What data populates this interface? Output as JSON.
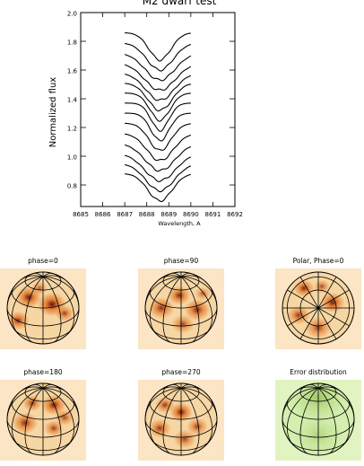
{
  "chart_data": [
    {
      "type": "line",
      "title": "M2 dwarf test",
      "xlabel": "Wavelength, A",
      "ylabel": "Normalized flux",
      "xlim": [
        8685,
        8692
      ],
      "ylim": [
        0.65,
        2.0
      ],
      "x_ticks": [
        "8685",
        "8686",
        "8687",
        "8688",
        "8689",
        "8690",
        "8691",
        "8692"
      ],
      "y_ticks": [
        "0.8",
        "1.0",
        "1.2",
        "1.4",
        "1.6",
        "1.8",
        "2.0"
      ],
      "line_profile": {
        "x_range": [
          8687.0,
          8690.0
        ],
        "center": 8688.6,
        "continuum_offsets": [
          0.88,
          0.95,
          1.02,
          1.09,
          1.16,
          1.23,
          1.3,
          1.37,
          1.44,
          1.51,
          1.58,
          1.65,
          1.72,
          1.79,
          1.86
        ],
        "depth": 0.19
      },
      "series_count": 15
    },
    {
      "type": "heatmap",
      "panels": [
        {
          "title": "phase=0",
          "spots": [
            [
              -40,
              30,
              16,
              0.95
            ],
            [
              25,
              10,
              18,
              1.0
            ],
            [
              -70,
              -35,
              14,
              0.85
            ],
            [
              60,
              -15,
              12,
              0.75
            ],
            [
              -10,
              55,
              10,
              0.6
            ]
          ],
          "palette": "orange"
        },
        {
          "title": "phase=90",
          "spots": [
            [
              -5,
              35,
              14,
              0.9
            ],
            [
              -55,
              0,
              16,
              0.85
            ],
            [
              45,
              -5,
              16,
              0.9
            ],
            [
              5,
              -45,
              14,
              0.7
            ],
            [
              60,
              40,
              10,
              0.6
            ]
          ],
          "palette": "orange"
        },
        {
          "title": "Polar, Phase=0",
          "spots": [
            [
              -40,
              55,
              13,
              0.9
            ],
            [
              40,
              15,
              15,
              0.95
            ],
            [
              -55,
              -20,
              14,
              0.8
            ],
            [
              0,
              -55,
              16,
              0.75
            ],
            [
              10,
              60,
              10,
              0.7
            ]
          ],
          "palette": "orange"
        },
        {
          "title": "phase=180",
          "spots": [
            [
              30,
              40,
              15,
              0.95
            ],
            [
              -30,
              45,
              12,
              0.8
            ],
            [
              -50,
              -10,
              16,
              0.85
            ],
            [
              30,
              -25,
              12,
              0.75
            ],
            [
              60,
              5,
              12,
              0.7
            ]
          ],
          "palette": "orange"
        },
        {
          "title": "phase=270",
          "spots": [
            [
              0,
              20,
              14,
              1.0
            ],
            [
              -45,
              40,
              12,
              0.8
            ],
            [
              -60,
              -25,
              14,
              0.8
            ],
            [
              45,
              -20,
              13,
              0.75
            ],
            [
              10,
              -55,
              14,
              0.7
            ]
          ],
          "palette": "orange"
        },
        {
          "title": "Error distribution",
          "spots": [
            [
              0,
              60,
              35,
              0.55
            ],
            [
              0,
              -45,
              30,
              0.35
            ]
          ],
          "palette": "green"
        }
      ]
    }
  ],
  "colors": {
    "orange_bg": "#fbe5c5",
    "orange_low": "#f6d6a3",
    "orange_mid": "#e47a2a",
    "orange_high": "#6a0f06",
    "green_bg": "#e2f3c2",
    "green_low": "#d4efb0",
    "green_high": "#6f9f2a"
  }
}
